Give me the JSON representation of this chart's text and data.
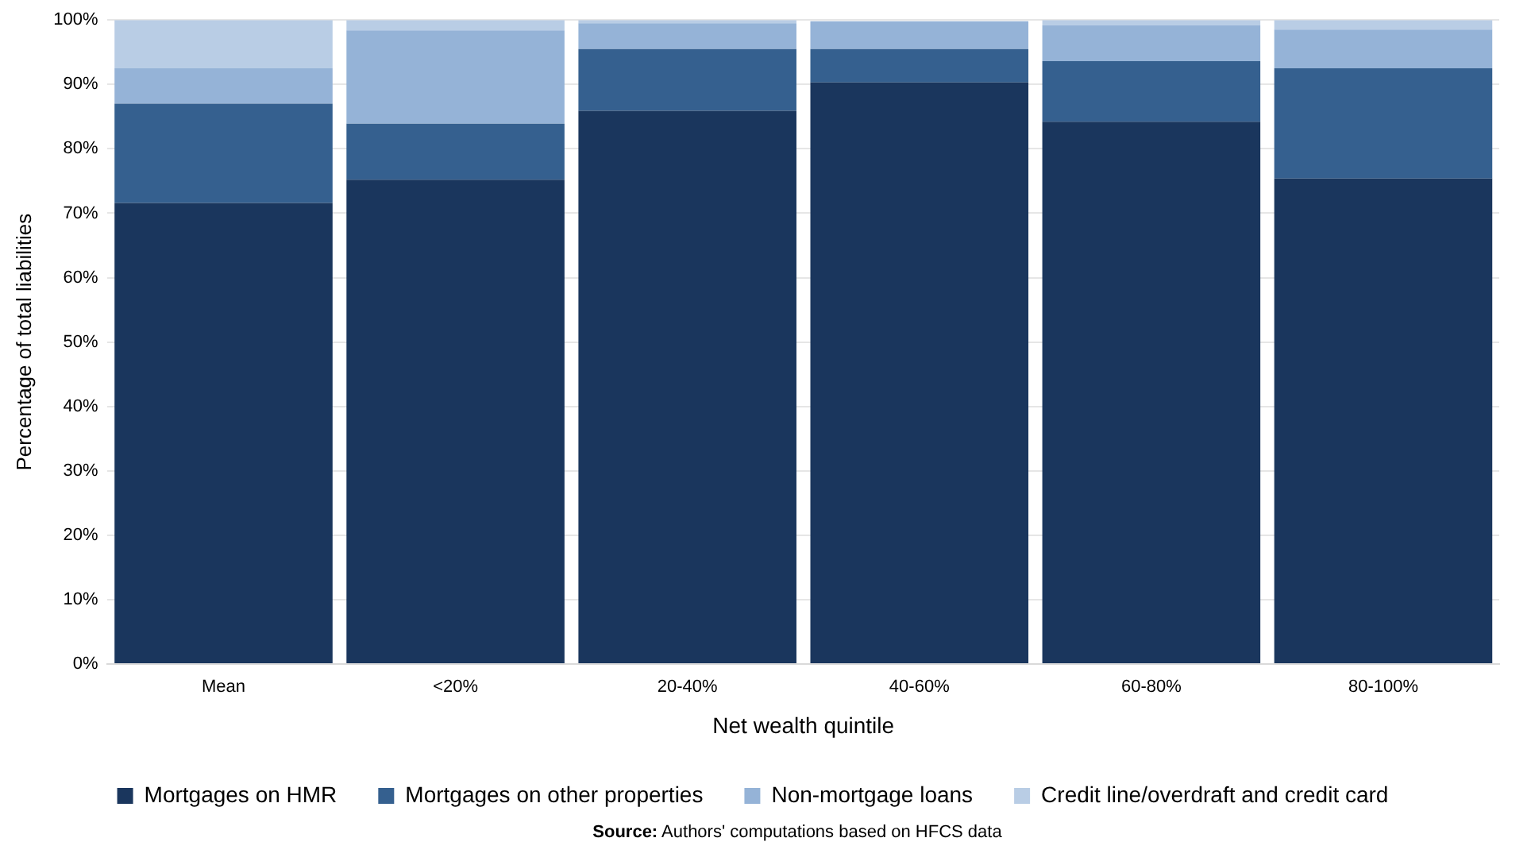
{
  "chart_data": {
    "type": "bar",
    "stacked": true,
    "xlabel": "Net wealth quintile",
    "ylabel": "Percentage of total liabilities",
    "categories": [
      "Mean",
      "<20%",
      "20-40%",
      "40-60%",
      "60-80%",
      "80-100%"
    ],
    "series": [
      {
        "name": "Mortgages on HMR",
        "color": "#1a365d",
        "values": [
          71.6,
          75.2,
          85.9,
          90.3,
          84.2,
          75.4
        ]
      },
      {
        "name": "Mortgages on other properties",
        "color": "#35608f",
        "values": [
          15.4,
          8.7,
          9.6,
          5.2,
          9.4,
          17.1
        ]
      },
      {
        "name": "Non-mortgage loans",
        "color": "#95b3d7",
        "values": [
          5.5,
          14.5,
          4.0,
          4.3,
          5.6,
          6.0
        ]
      },
      {
        "name": "Credit line/overdraft and credit card",
        "color": "#b9cde5",
        "values": [
          7.5,
          1.6,
          0.5,
          null,
          0.8,
          1.5
        ]
      }
    ],
    "ylim": [
      0,
      100
    ],
    "yticks": [
      {
        "value": 0,
        "label": "0%"
      },
      {
        "value": 10,
        "label": "10%"
      },
      {
        "value": 20,
        "label": "20%"
      },
      {
        "value": 30,
        "label": "30%"
      },
      {
        "value": 40,
        "label": "40%"
      },
      {
        "value": 50,
        "label": "50%"
      },
      {
        "value": 60,
        "label": "60%"
      },
      {
        "value": 70,
        "label": "70%"
      },
      {
        "value": 80,
        "label": "80%"
      },
      {
        "value": 90,
        "label": "90%"
      },
      {
        "value": 100,
        "label": "100%"
      }
    ],
    "grid": "y",
    "legend": "bottom",
    "annotations": [
      "Source: Authors' computations based on HFCS data"
    ]
  }
}
